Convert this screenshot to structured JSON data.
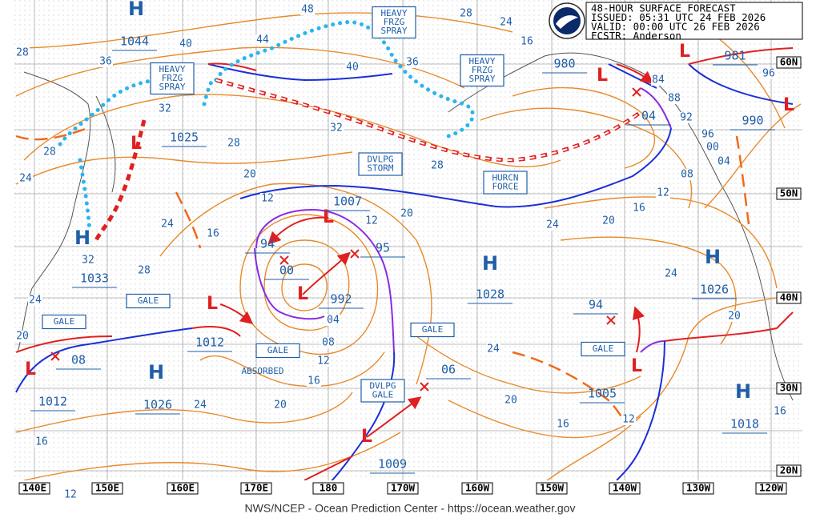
{
  "header": {
    "title": "48-HOUR SURFACE FORECAST",
    "issued": "ISSUED: 05:31 UTC 24 FEB 2026",
    "valid": "VALID:  00:00 UTC 26 FEB 2026",
    "forecaster": "FCSTR:  Anderson"
  },
  "boxes": [
    {
      "lines": [
        "HEAVY",
        "FRZG",
        "SPRAY"
      ]
    },
    {
      "lines": [
        "HEAVY",
        "FRZG",
        "SPRAY"
      ]
    },
    {
      "lines": [
        "HEAVY",
        "FRZG",
        "SPRAY"
      ]
    },
    {
      "lines": [
        "DVLPG",
        "STORM"
      ]
    },
    {
      "lines": [
        "HURCN",
        "FORCE"
      ]
    },
    {
      "lines": [
        "GALE"
      ]
    },
    {
      "lines": [
        "GALE"
      ]
    },
    {
      "lines": [
        "GALE"
      ]
    },
    {
      "lines": [
        "GALE"
      ]
    },
    {
      "lines": [
        "GALE"
      ]
    },
    {
      "lines": [
        "DVLPG",
        "GALE"
      ]
    }
  ],
  "annotations": [
    "ABSORBED"
  ],
  "symbols": [
    "H",
    "H",
    "H",
    "H",
    "H",
    "H",
    "L",
    "L",
    "L",
    "L",
    "L",
    "L",
    "L",
    "L",
    "L",
    "L"
  ],
  "pressures": [
    "1044",
    "1025",
    "1033",
    "1028",
    "1026",
    "1026",
    "1018",
    "1007",
    "992",
    "94",
    "95",
    "00",
    "1012",
    "08",
    "1012",
    "06",
    "1009",
    "1005",
    "94",
    "980",
    "04",
    "981",
    "990"
  ],
  "isobar_labels": [
    "48",
    "28",
    "24",
    "16",
    "40",
    "44",
    "36",
    "28",
    "40",
    "36",
    "32",
    "32",
    "28",
    "28",
    "28",
    "24",
    "20",
    "12",
    "12",
    "20",
    "24",
    "16",
    "28",
    "32",
    "24",
    "20",
    "04",
    "08",
    "12",
    "16",
    "20",
    "24",
    "16",
    "12",
    "24",
    "20",
    "16",
    "12",
    "16",
    "20",
    "24",
    "24",
    "20",
    "16",
    "12",
    "84",
    "88",
    "92",
    "96",
    "00",
    "04",
    "08",
    "96"
  ],
  "longitudes": [
    "140E",
    "150E",
    "160E",
    "170E",
    "180",
    "170W",
    "160W",
    "150W",
    "140W",
    "130W",
    "120W"
  ],
  "latitudes": [
    "60N",
    "50N",
    "40N",
    "30N",
    "20N"
  ],
  "footer": "NWS/NCEP - Ocean Prediction Center - https://ocean.weather.gov"
}
